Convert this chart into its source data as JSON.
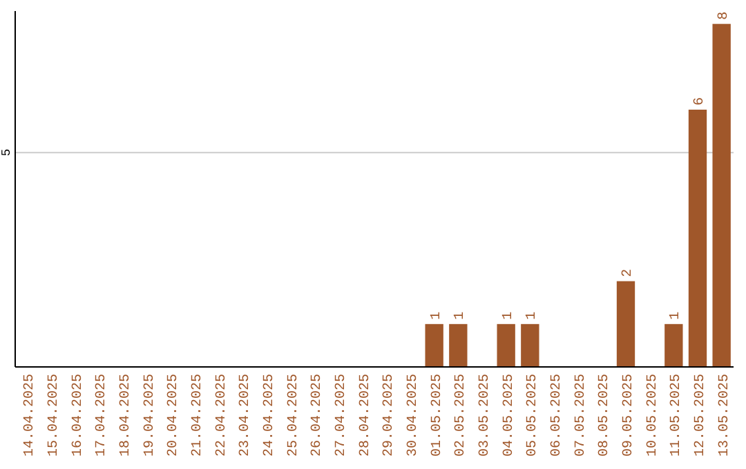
{
  "chart_data": {
    "type": "bar",
    "categories": [
      "14.04.2025",
      "15.04.2025",
      "16.04.2025",
      "17.04.2025",
      "18.04.2025",
      "19.04.2025",
      "20.04.2025",
      "21.04.2025",
      "22.04.2025",
      "23.04.2025",
      "24.04.2025",
      "25.04.2025",
      "26.04.2025",
      "27.04.2025",
      "28.04.2025",
      "29.04.2025",
      "30.04.2025",
      "01.05.2025",
      "02.05.2025",
      "03.05.2025",
      "04.05.2025",
      "05.05.2025",
      "06.05.2025",
      "07.05.2025",
      "08.05.2025",
      "09.05.2025",
      "10.05.2025",
      "11.05.2025",
      "12.05.2025",
      "13.05.2025"
    ],
    "values": [
      null,
      null,
      null,
      null,
      null,
      null,
      null,
      null,
      null,
      null,
      null,
      null,
      null,
      null,
      null,
      null,
      null,
      1,
      1,
      null,
      1,
      1,
      null,
      null,
      null,
      2,
      null,
      1,
      6,
      8
    ],
    "data_labels": true,
    "color": "#a0572a",
    "ylim": [
      0,
      8.3
    ],
    "yticks": [
      5
    ],
    "grid": "y"
  }
}
